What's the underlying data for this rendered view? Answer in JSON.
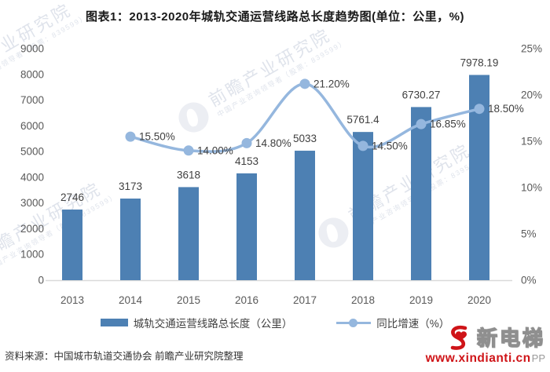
{
  "chart_data": {
    "type": "bar+line",
    "title": "图表1：2013-2020年城轨交通运营线路总长度趋势图(单位：公里，%)",
    "categories": [
      "2013",
      "2014",
      "2015",
      "2016",
      "2017",
      "2018",
      "2019",
      "2020"
    ],
    "series": [
      {
        "name": "城轨交通运营线路总长度（公里）",
        "type": "bar",
        "axis": "left",
        "values": [
          2746,
          3173,
          3618,
          4153,
          5033,
          5761.4,
          6730.27,
          7978.19
        ],
        "labels": [
          "2746",
          "3173",
          "3618",
          "4153",
          "5033",
          "5761.4",
          "6730.27",
          "7978.19"
        ]
      },
      {
        "name": "同比增速（%）",
        "type": "line",
        "axis": "right",
        "values": [
          null,
          15.5,
          14.0,
          14.8,
          21.2,
          14.5,
          16.85,
          18.5
        ],
        "labels": [
          "",
          "15.50%",
          "14.00%",
          "14.80%",
          "21.20%",
          "14.50%",
          "16.85%",
          "18.50%"
        ]
      }
    ],
    "left_axis": {
      "min": 0,
      "max": 9000,
      "step": 1000
    },
    "right_axis": {
      "min": 0,
      "max": 25,
      "step": 5,
      "suffix": "%"
    },
    "grid": "off",
    "legend_position": "bottom"
  },
  "source_note": "资料来源：中国城市轨道交通协会 前瞻产业研究院整理",
  "watermark": {
    "brand": "前瞻产业研究院",
    "tagline": "中国产业咨询领导者（股票：839599）"
  },
  "footer_logo": {
    "brand": "新电梯",
    "url": "www.xindianti.cn",
    "partial_text": "PP"
  },
  "colors": {
    "bar": "#4d80b3",
    "line": "#95b7de",
    "axis_text": "#595959",
    "label_text": "#3f3f3f",
    "axis_line": "#d9d9d9",
    "watermark": "#ccd3e0",
    "logo_red": "#cf1418"
  }
}
